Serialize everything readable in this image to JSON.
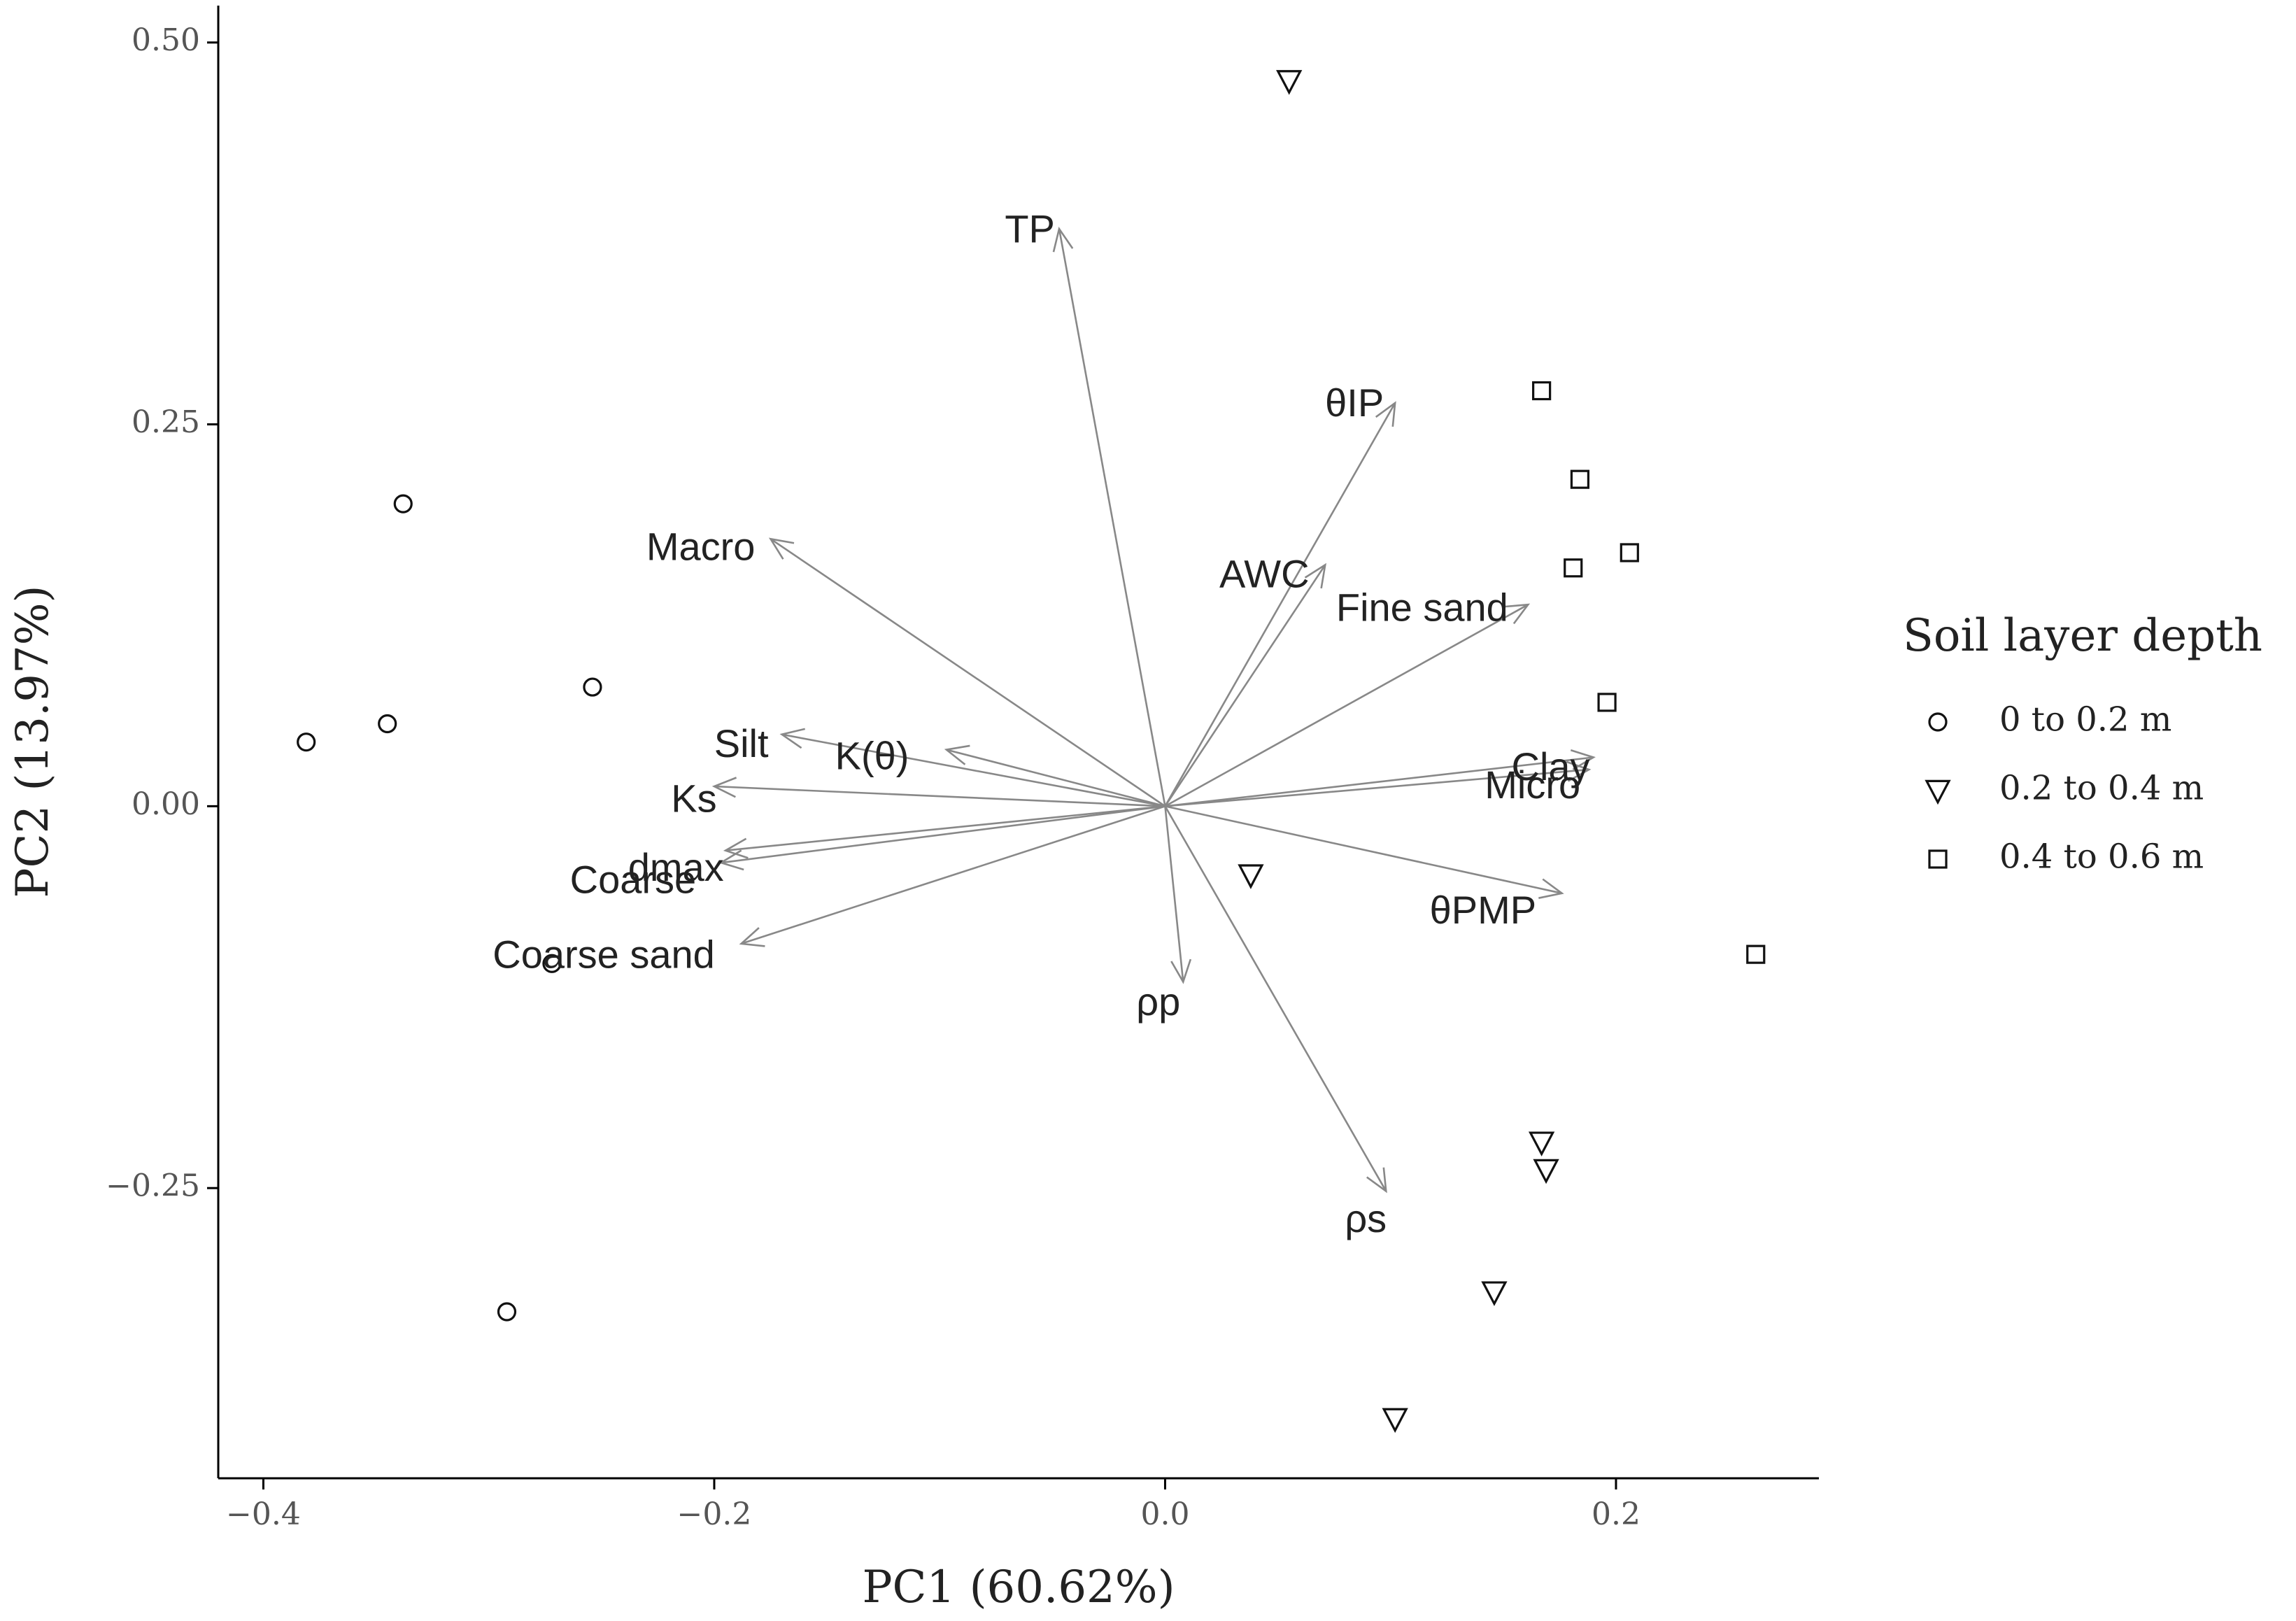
{
  "chart_data": {
    "type": "scatter",
    "subtype": "pca-biplot",
    "xlabel": "PC1 (60.62%)",
    "ylabel": "PC2 (13.97%)",
    "xlim": [
      -0.42,
      0.29
    ],
    "ylim": [
      -0.44,
      0.515
    ],
    "xticks": [
      -0.4,
      -0.2,
      0.0,
      0.2
    ],
    "xtick_labels": [
      "−0.4",
      "−0.2",
      "0.0",
      "0.2"
    ],
    "yticks": [
      -0.25,
      0.0,
      0.25,
      0.5
    ],
    "ytick_labels": [
      "−0.25",
      "0.00",
      "0.25",
      "0.50"
    ],
    "grid": false,
    "legend": {
      "title": "Soil layer depth",
      "position": "right",
      "entries": [
        {
          "label": "0 to 0.2 m",
          "shape": "circle"
        },
        {
          "label": "0.2 to 0.4 m",
          "shape": "triangle-down"
        },
        {
          "label": "0.4 to 0.6 m",
          "shape": "square"
        }
      ]
    },
    "series": [
      {
        "name": "0 to 0.2 m",
        "shape": "circle",
        "x": [
          -0.338,
          -0.381,
          -0.345,
          -0.254,
          -0.272,
          -0.292
        ],
        "y": [
          0.198,
          0.042,
          0.054,
          0.078,
          -0.103,
          -0.331
        ]
      },
      {
        "name": "0.2 to 0.4 m",
        "shape": "triangle-down",
        "x": [
          0.055,
          0.038,
          0.167,
          0.169,
          0.146,
          0.102
        ],
        "y": [
          0.475,
          -0.045,
          -0.22,
          -0.238,
          -0.318,
          -0.401
        ]
      },
      {
        "name": "0.4 to 0.6 m",
        "shape": "square",
        "x": [
          0.167,
          0.184,
          0.181,
          0.206,
          0.196,
          0.262
        ],
        "y": [
          0.272,
          0.214,
          0.156,
          0.166,
          0.068,
          -0.097
        ]
      }
    ],
    "loadings": [
      {
        "label": "TP",
        "x": -0.047,
        "y": 0.378,
        "lx": -0.06,
        "ly": 0.376
      },
      {
        "label": "θIP",
        "x": 0.102,
        "y": 0.264,
        "lx": 0.084,
        "ly": 0.262
      },
      {
        "label": "Macro",
        "x": -0.175,
        "y": 0.175,
        "lx": -0.206,
        "ly": 0.168
      },
      {
        "label": "AWC",
        "x": 0.071,
        "y": 0.158,
        "lx": 0.044,
        "ly": 0.15
      },
      {
        "label": "Fine sand",
        "x": 0.161,
        "y": 0.132,
        "lx": 0.114,
        "ly": 0.128
      },
      {
        "label": "Silt",
        "x": -0.17,
        "y": 0.047,
        "lx": -0.188,
        "ly": 0.039
      },
      {
        "label": "K(θ)",
        "x": -0.097,
        "y": 0.037,
        "lx": -0.13,
        "ly": 0.031
      },
      {
        "label": "Ks",
        "x": -0.2,
        "y": 0.013,
        "lx": -0.209,
        "ly": 0.003
      },
      {
        "label": "Clay",
        "x": 0.19,
        "y": 0.032,
        "lx": 0.171,
        "ly": 0.024
      },
      {
        "label": "Micro",
        "x": 0.188,
        "y": 0.024,
        "lx": 0.163,
        "ly": 0.012
      },
      {
        "label": "dmax",
        "x": -0.195,
        "y": -0.029,
        "lx": -0.217,
        "ly": -0.042
      },
      {
        "label": "Coarse",
        "x": -0.197,
        "y": -0.037,
        "lx": -0.236,
        "ly": -0.05
      },
      {
        "label": "θPMP",
        "x": 0.176,
        "y": -0.057,
        "lx": 0.141,
        "ly": -0.07
      },
      {
        "label": "Coarse sand",
        "x": -0.188,
        "y": -0.09,
        "lx": -0.249,
        "ly": -0.099
      },
      {
        "label": "ρp",
        "x": 0.008,
        "y": -0.115,
        "lx": -0.003,
        "ly": -0.13
      },
      {
        "label": "ρs",
        "x": 0.098,
        "y": -0.252,
        "lx": 0.089,
        "ly": -0.272
      }
    ]
  }
}
